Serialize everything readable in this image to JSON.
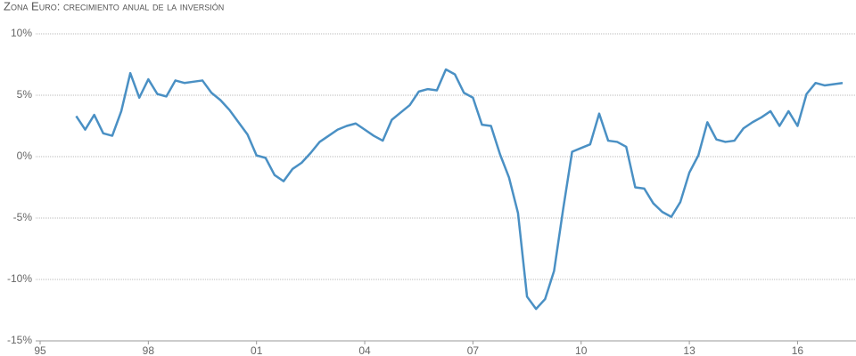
{
  "chart_data": {
    "type": "line",
    "title": "Zona Euro: crecimiento anual de la inversión",
    "x": [
      1996,
      1996.25,
      1996.5,
      1996.75,
      1997,
      1997.25,
      1997.5,
      1997.75,
      1998,
      1998.25,
      1998.5,
      1998.75,
      1999,
      1999.25,
      1999.5,
      1999.75,
      2000,
      2000.25,
      2000.5,
      2000.75,
      2001,
      2001.25,
      2001.5,
      2001.75,
      2002,
      2002.25,
      2002.5,
      2002.75,
      2003,
      2003.25,
      2003.5,
      2003.75,
      2004,
      2004.25,
      2004.5,
      2004.75,
      2005,
      2005.25,
      2005.5,
      2005.75,
      2006,
      2006.25,
      2006.5,
      2006.75,
      2007,
      2007.25,
      2007.5,
      2007.75,
      2008,
      2008.25,
      2008.5,
      2008.75,
      2009,
      2009.25,
      2009.5,
      2009.75,
      2010,
      2010.25,
      2010.5,
      2010.75,
      2011,
      2011.25,
      2011.5,
      2011.75,
      2012,
      2012.25,
      2012.5,
      2012.75,
      2013,
      2013.25,
      2013.5,
      2013.75,
      2014,
      2014.25,
      2014.5,
      2014.75,
      2015,
      2015.25,
      2015.5,
      2015.75,
      2016,
      2016.25,
      2016.5,
      2016.75,
      2017,
      2017.25
    ],
    "series": [
      {
        "color": "#4a90c4",
        "values": [
          3.3,
          2.2,
          3.4,
          1.9,
          1.7,
          3.7,
          6.8,
          4.8,
          6.3,
          5.1,
          4.9,
          6.2,
          6.0,
          6.1,
          6.2,
          5.2,
          4.6,
          3.8,
          2.8,
          1.8,
          0.1,
          -0.1,
          -1.5,
          -2.0,
          -1.0,
          -0.5,
          0.3,
          1.2,
          1.7,
          2.2,
          2.5,
          2.7,
          2.2,
          1.7,
          1.3,
          3.0,
          3.6,
          4.2,
          5.3,
          5.5,
          5.4,
          7.1,
          6.7,
          5.2,
          4.8,
          2.6,
          2.5,
          0.2,
          -1.7,
          -4.6,
          -11.4,
          -12.4,
          -11.6,
          -9.3,
          -4.3,
          0.4,
          0.7,
          1.0,
          3.5,
          1.3,
          1.2,
          0.8,
          -2.5,
          -2.6,
          -3.8,
          -4.5,
          -4.9,
          -3.7,
          -1.3,
          0.1,
          2.8,
          1.4,
          1.2,
          1.3,
          2.3,
          2.8,
          3.2,
          3.7,
          2.5,
          3.7,
          2.5,
          5.1,
          6.0,
          5.8,
          5.9,
          6.0
        ]
      }
    ],
    "ylim": [
      -15,
      10
    ],
    "yticks": [
      {
        "value": -15,
        "label": "-15%"
      },
      {
        "value": -10,
        "label": "-10%"
      },
      {
        "value": -5,
        "label": "-5%"
      },
      {
        "value": 0,
        "label": "0%"
      },
      {
        "value": 5,
        "label": "5%"
      },
      {
        "value": 10,
        "label": "10%"
      }
    ],
    "xlim": [
      1995,
      2017.25
    ],
    "xticks": [
      {
        "value": 1995,
        "label": "95"
      },
      {
        "value": 1998,
        "label": "98"
      },
      {
        "value": 2001,
        "label": "01"
      },
      {
        "value": 2004,
        "label": "04"
      },
      {
        "value": 2007,
        "label": "07"
      },
      {
        "value": 2010,
        "label": "10"
      },
      {
        "value": 2013,
        "label": "13"
      },
      {
        "value": 2016,
        "label": "16"
      }
    ],
    "grid": true
  }
}
